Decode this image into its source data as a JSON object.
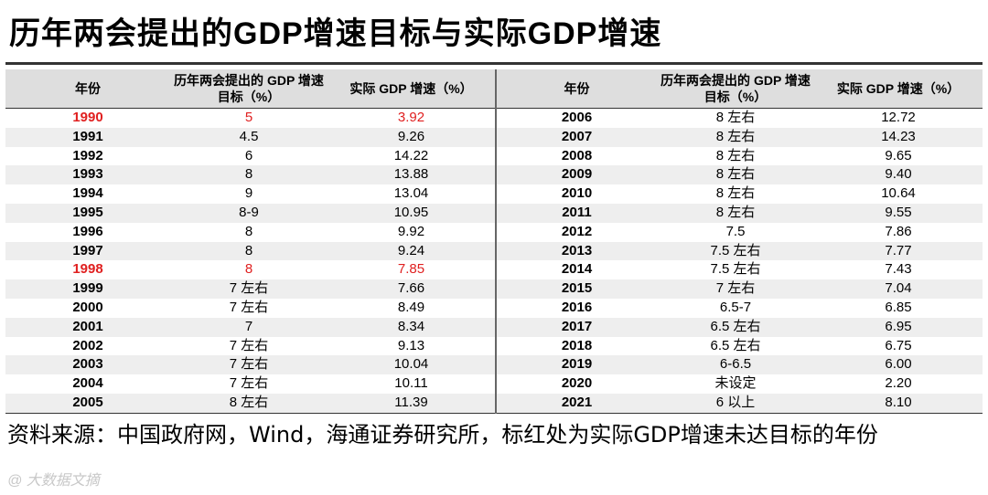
{
  "title": "历年两会提出的GDP增速目标与实际GDP增速",
  "table": {
    "headers": {
      "year": "年份",
      "target": "历年两会提出的 GDP 增速目标（%）",
      "actual": "实际 GDP 增速（%）"
    },
    "left_rows": [
      {
        "year": "1990",
        "target": "5",
        "actual": "3.92",
        "red": true
      },
      {
        "year": "1991",
        "target": "4.5",
        "actual": "9.26"
      },
      {
        "year": "1992",
        "target": "6",
        "actual": "14.22"
      },
      {
        "year": "1993",
        "target": "8",
        "actual": "13.88"
      },
      {
        "year": "1994",
        "target": "9",
        "actual": "13.04"
      },
      {
        "year": "1995",
        "target": "8-9",
        "actual": "10.95"
      },
      {
        "year": "1996",
        "target": "8",
        "actual": "9.92"
      },
      {
        "year": "1997",
        "target": "8",
        "actual": "9.24"
      },
      {
        "year": "1998",
        "target": "8",
        "actual": "7.85",
        "red": true
      },
      {
        "year": "1999",
        "target": "7 左右",
        "actual": "7.66"
      },
      {
        "year": "2000",
        "target": "7 左右",
        "actual": "8.49"
      },
      {
        "year": "2001",
        "target": "7",
        "actual": "8.34"
      },
      {
        "year": "2002",
        "target": "7 左右",
        "actual": "9.13"
      },
      {
        "year": "2003",
        "target": "7 左右",
        "actual": "10.04"
      },
      {
        "year": "2004",
        "target": "7 左右",
        "actual": "10.11"
      },
      {
        "year": "2005",
        "target": "8 左右",
        "actual": "11.39"
      }
    ],
    "right_rows": [
      {
        "year": "2006",
        "target": "8 左右",
        "actual": "12.72"
      },
      {
        "year": "2007",
        "target": "8 左右",
        "actual": "14.23"
      },
      {
        "year": "2008",
        "target": "8 左右",
        "actual": "9.65"
      },
      {
        "year": "2009",
        "target": "8 左右",
        "actual": "9.40"
      },
      {
        "year": "2010",
        "target": "8 左右",
        "actual": "10.64"
      },
      {
        "year": "2011",
        "target": "8 左右",
        "actual": "9.55"
      },
      {
        "year": "2012",
        "target": "7.5",
        "actual": "7.86"
      },
      {
        "year": "2013",
        "target": "7.5 左右",
        "actual": "7.77"
      },
      {
        "year": "2014",
        "target": "7.5 左右",
        "actual": "7.43"
      },
      {
        "year": "2015",
        "target": "7 左右",
        "actual": "7.04"
      },
      {
        "year": "2016",
        "target": "6.5-7",
        "actual": "6.85"
      },
      {
        "year": "2017",
        "target": "6.5 左右",
        "actual": "6.95"
      },
      {
        "year": "2018",
        "target": "6.5 左右",
        "actual": "6.75"
      },
      {
        "year": "2019",
        "target": "6-6.5",
        "actual": "6.00"
      },
      {
        "year": "2020",
        "target": "未设定",
        "actual": "2.20"
      },
      {
        "year": "2021",
        "target": "6 以上",
        "actual": "8.10"
      }
    ]
  },
  "source_note": "资料来源：中国政府网，Wind，海通证券研究所，标红处为实际GDP增速未达目标的年份",
  "watermark": "@ 大数据文摘",
  "colors": {
    "highlight": "#e02020",
    "header_bg": "#dedede",
    "stripe": "#eeeeee"
  }
}
